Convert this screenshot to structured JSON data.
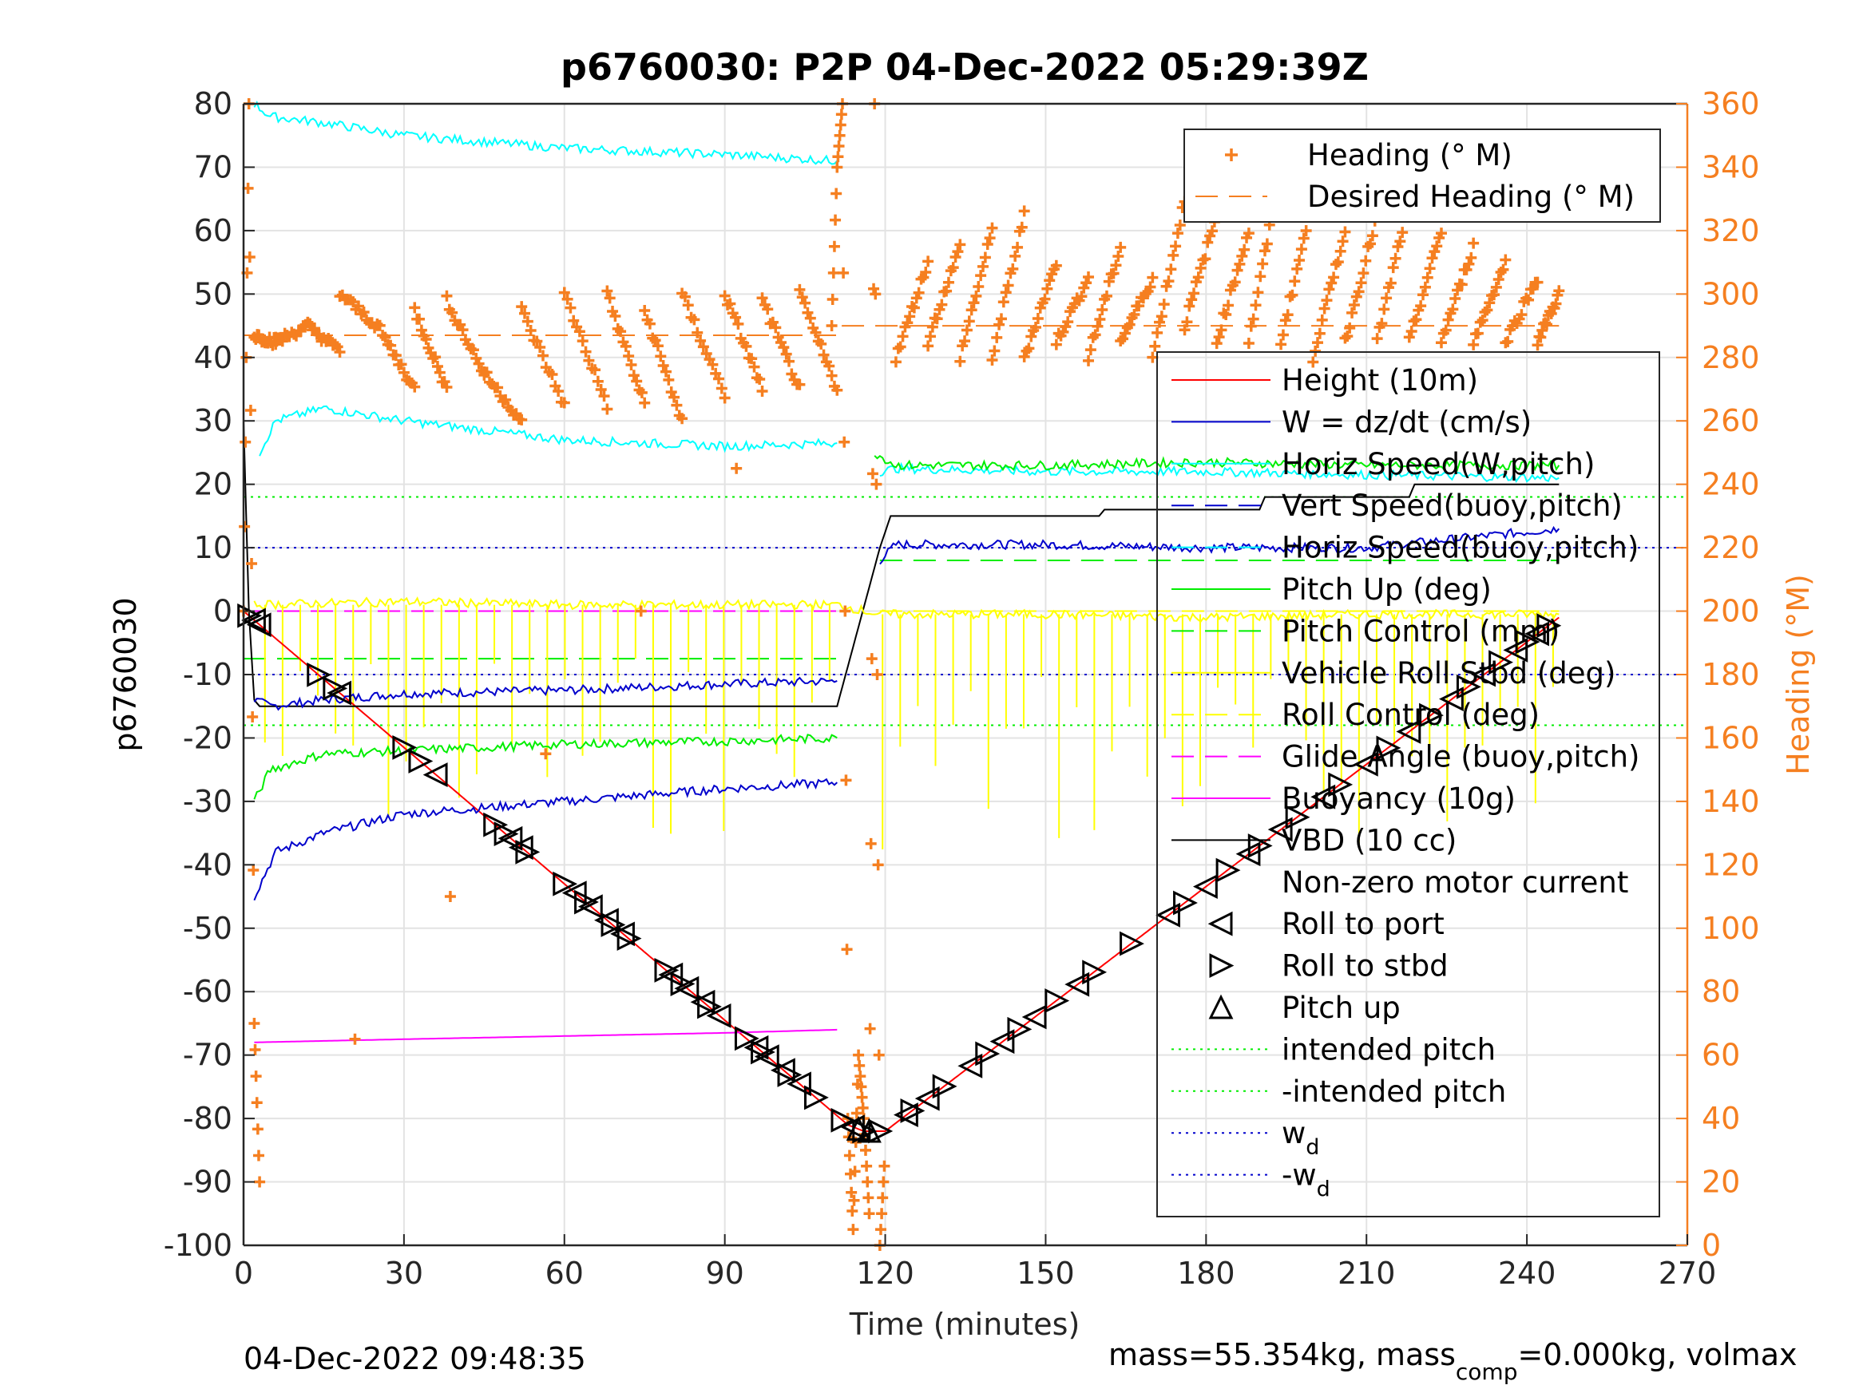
{
  "chart_data": {
    "type": "line",
    "title": "p6760030: P2P 04-Dec-2022 05:29:39Z",
    "xlabel": "Time (minutes)",
    "ylabel": "p6760030",
    "y2label": "Heading (°M)",
    "xlim": [
      0,
      270
    ],
    "ylim": [
      -100,
      80
    ],
    "y2lim": [
      0,
      360
    ],
    "xticks": [
      0,
      30,
      60,
      90,
      120,
      150,
      180,
      210,
      240,
      270
    ],
    "yticks": [
      -100,
      -90,
      -80,
      -70,
      -60,
      -50,
      -40,
      -30,
      -20,
      -10,
      0,
      10,
      20,
      30,
      40,
      50,
      60,
      70,
      80
    ],
    "y2ticks": [
      0,
      20,
      40,
      60,
      80,
      100,
      120,
      140,
      160,
      180,
      200,
      220,
      240,
      260,
      280,
      300,
      320,
      340,
      360
    ],
    "grid": true,
    "footer_left": "04-Dec-2022 09:48:35",
    "footer_right_parts": [
      "mass=55.354kg, mass",
      "comp",
      "=0.000kg, volmax"
    ],
    "legend_top": [
      {
        "label": "Heading (° M)",
        "color": "#f57f20",
        "style": "plus"
      },
      {
        "label": "Desired Heading (° M)",
        "color": "#f57f20",
        "style": "dash"
      }
    ],
    "legend_main": [
      {
        "label": "Height (10m)",
        "color": "#ff0000",
        "style": "solid"
      },
      {
        "label": "W = dz/dt (cm/s)",
        "color": "#0000cc",
        "style": "solid"
      },
      {
        "label": "Horiz Speed(W,pitch)",
        "color": "#00ffff",
        "style": "solid"
      },
      {
        "label": "Vert Speed(buoy,pitch)",
        "color": "#0000cc",
        "style": "dash"
      },
      {
        "label": "Horiz Speed(buoy,pitch)",
        "color": "#00ffff",
        "style": "dash"
      },
      {
        "label": "Pitch Up (deg)",
        "color": "#00ee00",
        "style": "solid"
      },
      {
        "label": "Pitch Control (mm)",
        "color": "#00ee00",
        "style": "dash"
      },
      {
        "label": "Vehicle Roll Stbd (deg)",
        "color": "#ffff00",
        "style": "solid"
      },
      {
        "label": "Roll Control (deg)",
        "color": "#ffff00",
        "style": "dash"
      },
      {
        "label": "Glide Angle (buoy,pitch)",
        "color": "#ff00ff",
        "style": "dash"
      },
      {
        "label": "Buoyancy (10g)",
        "color": "#ff00ff",
        "style": "solid"
      },
      {
        "label": "VBD (10 cc)",
        "color": "#000000",
        "style": "solid"
      },
      {
        "label": "Non-zero motor current",
        "color": "#000000",
        "style": "none"
      },
      {
        "label": "Roll to port",
        "color": "#000000",
        "style": "tri-left"
      },
      {
        "label": "Roll to stbd",
        "color": "#000000",
        "style": "tri-right"
      },
      {
        "label": "Pitch up",
        "color": "#000000",
        "style": "tri-up"
      },
      {
        "label": "intended pitch",
        "color": "#00ee00",
        "style": "dot"
      },
      {
        "label": "-intended pitch",
        "color": "#00ee00",
        "style": "dot"
      },
      {
        "label": "w",
        "sub": "d",
        "color": "#0000cc",
        "style": "dot"
      },
      {
        "label": "-w",
        "sub": "d",
        "color": "#0000cc",
        "style": "dot"
      }
    ],
    "series": [
      {
        "name": "Height (10m)",
        "color": "#ff0000",
        "axis": "left",
        "x": [
          0,
          113,
          116,
          120,
          246
        ],
        "y": [
          0,
          -81,
          -82,
          -82,
          -1
        ]
      },
      {
        "name": "VBD (10 cc)",
        "color": "#000000",
        "axis": "left",
        "x": [
          0,
          1,
          2,
          3,
          10,
          111,
          119,
          121,
          160,
          161,
          190,
          191,
          218,
          219,
          246
        ],
        "y": [
          30,
          0,
          -14,
          -15,
          -15,
          -15,
          10,
          15,
          15,
          16,
          16,
          18,
          18,
          20,
          20
        ]
      },
      {
        "name": "W = dz/dt (cm/s) descent",
        "color": "#0000cc",
        "axis": "left",
        "x": [
          2,
          5,
          15,
          30,
          60,
          90,
          111
        ],
        "y": [
          -14,
          -15,
          -14,
          -13,
          -12.5,
          -11.5,
          -11
        ]
      },
      {
        "name": "W = dz/dt (cm/s) climb",
        "color": "#0000cc",
        "axis": "left",
        "x": [
          119,
          122,
          150,
          180,
          210,
          246
        ],
        "y": [
          8,
          10.5,
          10.5,
          10,
          10,
          13
        ]
      },
      {
        "name": "Vert Speed(buoy,pitch)",
        "color": "#0000cc",
        "axis": "left",
        "x": [
          2,
          6,
          15,
          30,
          60,
          90,
          111
        ],
        "y": [
          -45,
          -38,
          -35,
          -32,
          -30,
          -28,
          -27
        ]
      },
      {
        "name": "Horiz Speed(W,pitch) descent",
        "color": "#00ffff",
        "axis": "left",
        "x": [
          2,
          5,
          15,
          30,
          60,
          90,
          111
        ],
        "y": [
          80,
          78,
          77,
          75,
          73,
          72,
          71
        ]
      },
      {
        "name": "Horiz Speed(buoy,pitch) descent",
        "color": "#00ffff",
        "axis": "left",
        "x": [
          3,
          6,
          15,
          30,
          60,
          90,
          111
        ],
        "y": [
          25,
          30,
          32,
          30,
          27,
          26,
          26.5
        ]
      },
      {
        "name": "Horiz Speed climb",
        "color": "#00ffff",
        "axis": "left",
        "x": [
          119,
          122,
          150,
          180,
          210,
          246
        ],
        "y": [
          22,
          22.5,
          22,
          22,
          21.5,
          21
        ]
      },
      {
        "name": "Pitch Up (deg) descent",
        "color": "#00ee00",
        "axis": "left",
        "x": [
          2,
          5,
          15,
          30,
          60,
          90,
          111
        ],
        "y": [
          -30,
          -25,
          -22.5,
          -22,
          -21,
          -20.5,
          -20
        ]
      },
      {
        "name": "Pitch Up (deg) climb",
        "color": "#00ee00",
        "axis": "left",
        "x": [
          118,
          122,
          150,
          180,
          210,
          246
        ],
        "y": [
          25,
          23,
          23,
          23.5,
          23,
          23
        ]
      },
      {
        "name": "Buoyancy (10g)",
        "color": "#ff00ff",
        "axis": "left",
        "x": [
          2,
          30,
          60,
          90,
          111
        ],
        "y": [
          -68,
          -67.5,
          -67,
          -66.5,
          -66
        ]
      },
      {
        "name": "Vehicle Roll Stbd (deg)",
        "color": "#ffff00",
        "axis": "left",
        "x": [
          2,
          30,
          60,
          90,
          111,
          119,
          150,
          180,
          210,
          246
        ],
        "y": [
          1,
          1.5,
          1,
          1,
          1,
          -0.5,
          -0.5,
          -1,
          -0.5,
          -0.5
        ]
      }
    ],
    "reference_lines": [
      {
        "name": "intended pitch",
        "y": 18,
        "color": "#00ee00"
      },
      {
        "name": "-intended pitch",
        "y": -18,
        "color": "#00ee00"
      },
      {
        "name": "wd",
        "y": 10,
        "color": "#0000cc"
      },
      {
        "name": "-wd",
        "y": -10,
        "color": "#0000cc"
      },
      {
        "name": "Pitch Control (mm) descent",
        "y": -7.5,
        "x": [
          0,
          111
        ],
        "color": "#00ee00"
      },
      {
        "name": "Pitch Control (mm) climb",
        "y": 8,
        "x": [
          119,
          246
        ],
        "color": "#00ee00"
      },
      {
        "name": "Glide Angle (buoy,pitch)",
        "y": 0,
        "x": [
          0,
          111
        ],
        "color": "#ff00ff"
      },
      {
        "name": "Roll Control (deg)",
        "y": 0,
        "x": [
          119,
          246
        ],
        "color": "#ffff00"
      }
    ],
    "desired_heading": {
      "x": [
        0,
        111,
        112,
        246
      ],
      "y": [
        287,
        287,
        290,
        290
      ]
    },
    "heading_descent_segments": [
      [
        2,
        287,
        6,
        285
      ],
      [
        6,
        285,
        12,
        290
      ],
      [
        12,
        290,
        18,
        282
      ],
      [
        18,
        300,
        25,
        290
      ],
      [
        25,
        290,
        32,
        270
      ],
      [
        32,
        295,
        38,
        270
      ],
      [
        38,
        298,
        45,
        275
      ],
      [
        45,
        275,
        52,
        260
      ],
      [
        52,
        295,
        60,
        265
      ],
      [
        60,
        300,
        68,
        265
      ],
      [
        68,
        300,
        75,
        265
      ],
      [
        75,
        295,
        82,
        260
      ],
      [
        82,
        300,
        90,
        268
      ],
      [
        90,
        300,
        97,
        270
      ],
      [
        97,
        298,
        104,
        270
      ],
      [
        104,
        300,
        111,
        270
      ]
    ],
    "heading_climb_segments": [
      [
        122,
        280,
        128,
        310
      ],
      [
        128,
        285,
        134,
        315
      ],
      [
        134,
        280,
        140,
        320
      ],
      [
        140,
        280,
        146,
        325
      ],
      [
        146,
        280,
        152,
        310
      ],
      [
        152,
        285,
        158,
        305
      ],
      [
        158,
        280,
        164,
        315
      ],
      [
        164,
        285,
        170,
        305
      ],
      [
        170,
        280,
        176,
        330
      ],
      [
        176,
        290,
        182,
        325
      ],
      [
        182,
        285,
        188,
        320
      ],
      [
        188,
        285,
        194,
        340
      ],
      [
        194,
        285,
        200,
        330
      ],
      [
        200,
        280,
        206,
        320
      ],
      [
        206,
        285,
        212,
        325
      ],
      [
        212,
        285,
        218,
        330
      ],
      [
        218,
        285,
        224,
        320
      ],
      [
        224,
        285,
        230,
        315
      ],
      [
        230,
        285,
        236,
        310
      ],
      [
        236,
        285,
        242,
        305
      ],
      [
        242,
        285,
        246,
        300
      ]
    ],
    "heading_turn": {
      "x": [
        0,
        1,
        2,
        3,
        110,
        111,
        112,
        113,
        114,
        115,
        116,
        117,
        118,
        119,
        120
      ],
      "y": [
        200,
        360,
        70,
        20,
        290,
        340,
        360,
        40,
        5,
        60,
        40,
        10,
        360,
        0,
        30
      ]
    },
    "events": {
      "roll_to_port_x": [
        2,
        3,
        18,
        36,
        50,
        52,
        62,
        65,
        68,
        71,
        80,
        83,
        86,
        89,
        96,
        98,
        101,
        104,
        114
      ],
      "roll_to_stbd_x": [
        1,
        14,
        17,
        30,
        33,
        47,
        49,
        53,
        60,
        64,
        69,
        72,
        79,
        82,
        87,
        94,
        97,
        102,
        107,
        112,
        116,
        119
      ],
      "climb_left_x": [
        124,
        128,
        136,
        142,
        148,
        156,
        173,
        180,
        188,
        194,
        202,
        210,
        218,
        226,
        232,
        238,
        242
      ],
      "climb_right_x": [
        125,
        131,
        139,
        145,
        152,
        159,
        166,
        176,
        184,
        190,
        197,
        205,
        214,
        222,
        229,
        235,
        240,
        244
      ],
      "pitch_up_x": [
        115,
        117
      ]
    }
  }
}
